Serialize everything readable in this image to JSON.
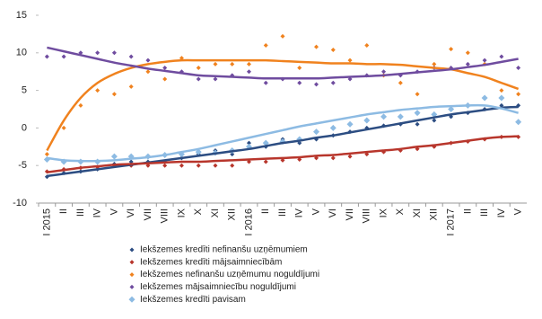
{
  "chart_data": {
    "type": "scatter-trend",
    "categories": [
      "I 2015",
      "II",
      "III",
      "IV",
      "V",
      "VI",
      "VII",
      "VIII",
      "IX",
      "X",
      "XI",
      "XII",
      "I 2016",
      "II",
      "III",
      "IV",
      "V",
      "VI",
      "VII",
      "VIII",
      "IX",
      "X",
      "XI",
      "XII",
      "I 2017",
      "II",
      "III",
      "IV",
      "V"
    ],
    "ylim": [
      -10,
      15
    ],
    "yticks": [
      -10,
      -5,
      0,
      5,
      10,
      15
    ],
    "grid": false,
    "series": [
      {
        "name": "Iekšzemes kredīti nefinanšu uzņēmumiem",
        "color": "#2c4d82",
        "values": [
          -6.5,
          -6,
          -5.8,
          -5.5,
          -4.8,
          -4.5,
          -4.5,
          -4.5,
          -4,
          -3.5,
          -3,
          -3.5,
          -2,
          -2.5,
          -1.5,
          -2,
          -1.5,
          -1,
          -0.5,
          0,
          0.3,
          0.5,
          0.5,
          1,
          1.5,
          2,
          2.5,
          3,
          3
        ],
        "trend": [
          -6.4,
          -6.1,
          -5.8,
          -5.5,
          -5.2,
          -4.9,
          -4.6,
          -4.3,
          -4,
          -3.7,
          -3.4,
          -3.1,
          -2.8,
          -2.4,
          -2,
          -1.7,
          -1.3,
          -1,
          -0.6,
          -0.2,
          0.2,
          0.6,
          1,
          1.4,
          1.8,
          2.1,
          2.4,
          2.7,
          2.8
        ]
      },
      {
        "name": "Iekšzemes kredīti mājsaimniecībām",
        "color": "#b8362c",
        "values": [
          -5.8,
          -5.5,
          -5.3,
          -5.2,
          -5,
          -5,
          -5,
          -5,
          -5,
          -5,
          -5,
          -5,
          -4.5,
          -4.5,
          -4.3,
          -4.2,
          -4,
          -4,
          -3.8,
          -3.5,
          -3.2,
          -3,
          -2.8,
          -2.5,
          -2,
          -1.8,
          -1.5,
          -1.2,
          -1.2
        ],
        "trend": [
          -5.9,
          -5.6,
          -5.3,
          -5.1,
          -4.9,
          -4.8,
          -4.7,
          -4.6,
          -4.5,
          -4.5,
          -4.4,
          -4.3,
          -4.2,
          -4.1,
          -4,
          -3.9,
          -3.7,
          -3.6,
          -3.4,
          -3.2,
          -3,
          -2.8,
          -2.5,
          -2.3,
          -2,
          -1.7,
          -1.4,
          -1.2,
          -1.1
        ]
      },
      {
        "name": "Iekšzemes nefinanšu uzņēmumu noguldījumi",
        "color": "#f0821e",
        "values": [
          -3.5,
          0,
          3,
          5,
          4.5,
          5.5,
          7.5,
          6.5,
          9.3,
          8,
          8.5,
          8.5,
          8.5,
          11,
          12.2,
          8,
          10.8,
          10.4,
          9,
          11,
          7,
          6,
          4.5,
          8.5,
          10.5,
          10,
          8.5,
          5,
          4.5
        ],
        "trend": [
          -3,
          1,
          4,
          6,
          7.2,
          8,
          8.5,
          8.8,
          9,
          9,
          9,
          9,
          9,
          9,
          8.9,
          8.8,
          8.7,
          8.6,
          8.6,
          8.5,
          8.5,
          8.4,
          8.2,
          8,
          7.8,
          7.3,
          6.8,
          6,
          5.2
        ]
      },
      {
        "name": "Iekšzemes mājsaimniecību noguldījumi",
        "color": "#6f4c9f",
        "values": [
          9.5,
          9.5,
          10,
          10,
          10,
          9.5,
          9,
          8,
          7.5,
          6.5,
          6.5,
          7,
          7.5,
          6,
          6.5,
          6,
          5.8,
          6,
          6.5,
          7,
          7.5,
          7,
          7.5,
          8,
          8,
          8.5,
          9,
          9.5,
          8
        ],
        "trend": [
          10.7,
          10.2,
          9.7,
          9.2,
          8.7,
          8.3,
          7.9,
          7.6,
          7.3,
          7,
          6.9,
          6.8,
          6.7,
          6.6,
          6.6,
          6.6,
          6.6,
          6.7,
          6.8,
          6.9,
          7,
          7.2,
          7.4,
          7.6,
          7.8,
          8.1,
          8.4,
          8.8,
          9.2
        ]
      },
      {
        "name": "Iekšzemes kredīti pavisam",
        "color": "#8dbbe3",
        "values": [
          -4.2,
          -4.5,
          -4.5,
          -4.5,
          -3.8,
          -3.8,
          -3.8,
          -3.6,
          -3.5,
          -3.2,
          -3.3,
          -3,
          -2.5,
          -2,
          -1.8,
          -1.5,
          -0.5,
          0,
          0.5,
          1,
          1.5,
          1.5,
          2,
          1.8,
          2.5,
          3,
          4,
          4,
          0.8
        ],
        "trend": [
          -4,
          -4.3,
          -4.4,
          -4.4,
          -4.3,
          -4.1,
          -3.9,
          -3.6,
          -3.2,
          -2.8,
          -2.3,
          -1.8,
          -1.3,
          -0.8,
          -0.3,
          0.2,
          0.6,
          1,
          1.4,
          1.8,
          2.1,
          2.4,
          2.6,
          2.8,
          2.9,
          3,
          3,
          2.6,
          2
        ]
      }
    ]
  }
}
